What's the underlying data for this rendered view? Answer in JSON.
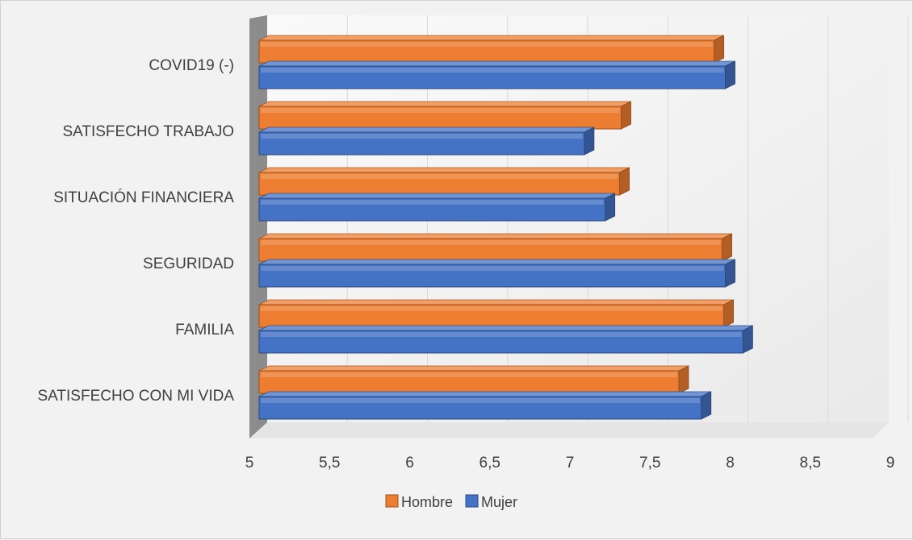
{
  "chart_data": {
    "type": "bar",
    "orientation": "horizontal",
    "style": "3d",
    "categories": [
      "SATISFECHO CON MI VIDA",
      "FAMILIA",
      "SEGURIDAD",
      "SITUACIÓN FINANCIERA",
      "SATISFECHO TRABAJO",
      "COVID19 (-)"
    ],
    "series": [
      {
        "name": "Hombre",
        "color": "#ed7d31",
        "values": [
          7.68,
          7.96,
          7.95,
          7.31,
          7.32,
          7.9
        ]
      },
      {
        "name": "Mujer",
        "color": "#4472c4",
        "values": [
          7.82,
          8.08,
          7.97,
          7.22,
          7.09,
          7.97
        ]
      }
    ],
    "x_ticks": [
      "5",
      "5,5",
      "6",
      "6,5",
      "7",
      "7,5",
      "8",
      "8,5",
      "9"
    ],
    "xlim": [
      5,
      9
    ],
    "grid": true,
    "legend_position": "bottom",
    "title": "",
    "xlabel": "",
    "ylabel": ""
  }
}
